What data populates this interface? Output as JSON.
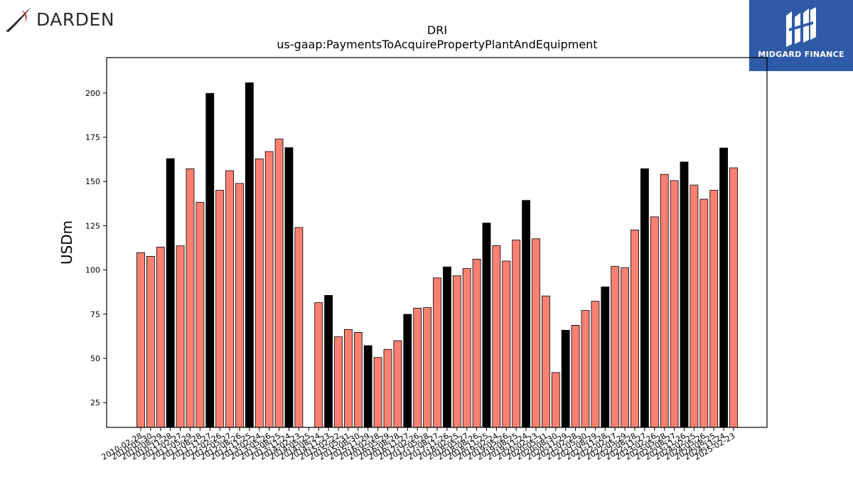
{
  "brand": {
    "left_logo_text": "DARDEN",
    "right_logo_text": "MIDGARD FINANCE"
  },
  "colors": {
    "bar_default": "#fa8072",
    "bar_highlight": "#000000",
    "logo_blue": "#2f5aa8",
    "logo_red": "#c0272d"
  },
  "chart_data": {
    "type": "bar",
    "title": "DRI",
    "subtitle": "us-gaap:PaymentsToAcquirePropertyPlantAndEquipment",
    "ylabel": "USDm",
    "xlabel": "",
    "ylim": [
      11,
      220
    ],
    "yticks": [
      25,
      50,
      75,
      100,
      125,
      150,
      175,
      200
    ],
    "grid": false,
    "categories": [
      "2010-02-28",
      "2010-05-30",
      "2010-08-29",
      "2010-11-28",
      "2011-02-27",
      "2011-05-29",
      "2011-08-28",
      "2011-11-27",
      "2012-02-26",
      "2012-05-27",
      "2012-08-26",
      "2012-11-25",
      "2013-02-24",
      "2013-05-26",
      "2013-08-25",
      "2013-11-24",
      "2014-02-23",
      "2014-05-25",
      "2014-08-24",
      "2014-11-23",
      "2015-02-22",
      "2015-05-31",
      "2015-08-30",
      "2015-11-29",
      "2016-02-28",
      "2016-05-29",
      "2016-08-28",
      "2016-11-27",
      "2017-02-26",
      "2017-05-28",
      "2017-08-27",
      "2017-11-26",
      "2018-02-25",
      "2018-05-27",
      "2018-08-26",
      "2018-11-25",
      "2019-02-24",
      "2019-05-26",
      "2019-08-25",
      "2019-11-24",
      "2020-02-23",
      "2020-05-31",
      "2020-08-30",
      "2020-11-29",
      "2021-02-28",
      "2021-05-30",
      "2021-08-29",
      "2021-11-28",
      "2022-02-27",
      "2022-05-29",
      "2022-08-28",
      "2022-11-27",
      "2023-02-26",
      "2023-05-28",
      "2023-08-27",
      "2023-11-26",
      "2024-02-25",
      "2024-05-26",
      "2024-08-25",
      "2024-11-24",
      "2025-02-23"
    ],
    "xtick_labels": [
      "2010-02-28",
      "2010-05-30",
      "2010-08-29",
      "2010-11-28",
      "2011-02-27",
      "2011-05-29",
      "2011-08-28",
      "2011-11-27",
      "2012-02-26",
      "2012-05-27",
      "2012-08-26",
      "2012-11-25",
      "2013-02-24",
      "2013-05-26",
      "2013-08-25",
      "2013-11-24",
      "2014-02-23",
      "2014-05-25",
      "2014-08-24",
      "2014-11-23",
      "2015-02-22",
      "2015-05-31",
      "2015-08-30",
      "2015-11-29",
      "2016-02-28",
      "2016-05-29",
      "2016-08-28",
      "2016-11-27",
      "2017-02-26",
      "2017-05-28",
      "2017-08-27",
      "2017-11-26",
      "2018-02-25",
      "2018-05-27",
      "2018-08-26",
      "2018-11-25",
      "2019-02-24",
      "2019-05-26",
      "2019-08-25",
      "2019-11-24",
      "2020-02-23",
      "2020-05-31",
      "2020-08-30",
      "2020-11-29",
      "2021-02-28",
      "2021-05-30",
      "2021-08-29",
      "2021-11-28",
      "2022-02-27",
      "2022-05-29",
      "2022-08-28",
      "2022-11-27",
      "2023-02-26",
      "2023-05-28",
      "2023-08-27",
      "2023-11-26",
      "2024-02-25",
      "2024-05-26",
      "2024-08-25",
      "2024-11-24",
      "2025-02-23"
    ],
    "values": [
      109.7,
      107.7,
      112.9,
      162.9,
      113.6,
      157.2,
      138.2,
      199.8,
      145.0,
      156.1,
      148.9,
      205.8,
      162.8,
      166.9,
      174.0,
      169.1,
      124.0,
      null,
      81.5,
      85.6,
      62.2,
      66.3,
      64.7,
      57.2,
      50.5,
      55.1,
      60.0,
      74.9,
      78.4,
      78.7,
      95.5,
      101.7,
      96.7,
      100.8,
      106.1,
      126.5,
      113.7,
      105.0,
      116.9,
      139.3,
      117.6,
      85.3,
      42.0,
      65.9,
      68.7,
      77.1,
      82.3,
      90.4,
      102.0,
      101.2,
      122.6,
      157.2,
      130.0,
      154.0,
      150.5,
      161.0,
      148.0,
      140.0,
      145.0,
      168.9,
      157.7
    ],
    "highlight": [
      false,
      false,
      false,
      true,
      false,
      false,
      false,
      true,
      false,
      false,
      false,
      true,
      false,
      false,
      false,
      true,
      false,
      false,
      false,
      true,
      false,
      false,
      false,
      true,
      false,
      false,
      false,
      true,
      false,
      false,
      false,
      true,
      false,
      false,
      false,
      true,
      false,
      false,
      false,
      true,
      false,
      false,
      false,
      true,
      false,
      false,
      false,
      true,
      false,
      false,
      false,
      true,
      false,
      false,
      false,
      true,
      false,
      false,
      false,
      true,
      false
    ]
  }
}
